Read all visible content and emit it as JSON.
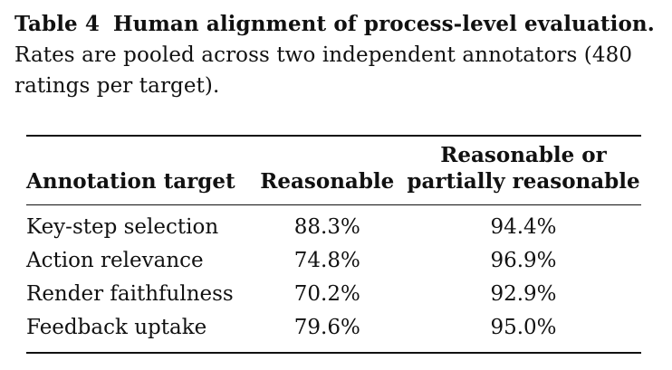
{
  "caption": {
    "label": "Table 4",
    "title": "Human alignment of process-level evaluation.",
    "text": "Rates are pooled across two independent annotators (480 ratings per target)."
  },
  "table": {
    "headers": [
      "Annotation target",
      "Reasonable",
      "Reasonable or partially reasonable"
    ],
    "rows": [
      [
        "Key-step selection",
        "88.3%",
        "94.4%"
      ],
      [
        "Action relevance",
        "74.8%",
        "96.9%"
      ],
      [
        "Render faithfulness",
        "70.2%",
        "92.9%"
      ],
      [
        "Feedback uptake",
        "79.6%",
        "95.0%"
      ]
    ]
  },
  "chart_data": {
    "type": "table",
    "title": "Human alignment of process-level evaluation.",
    "columns": [
      "Annotation target",
      "Reasonable",
      "Reasonable or partially reasonable"
    ],
    "rows": [
      {
        "target": "Key-step selection",
        "reasonable": 88.3,
        "reasonable_or_partial": 94.4
      },
      {
        "target": "Action relevance",
        "reasonable": 74.8,
        "reasonable_or_partial": 96.9
      },
      {
        "target": "Render faithfulness",
        "reasonable": 70.2,
        "reasonable_or_partial": 92.9
      },
      {
        "target": "Feedback uptake",
        "reasonable": 79.6,
        "reasonable_or_partial": 95.0
      }
    ]
  }
}
